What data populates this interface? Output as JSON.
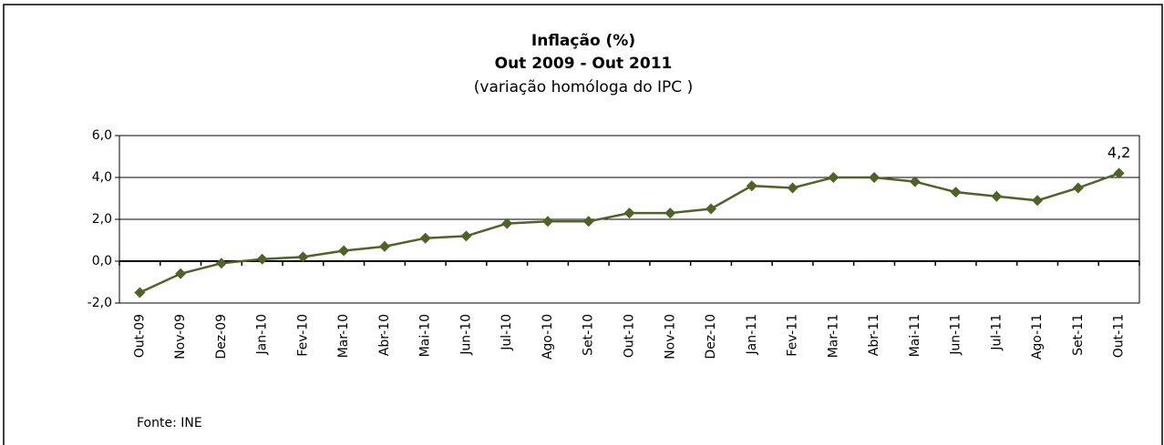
{
  "chart_data": {
    "type": "line",
    "title": "Inflação  (%)",
    "subtitle": "Out 2009 - Out 2011",
    "subtitle2": "(variação homóloga do IPC )",
    "source": "Fonte: INE",
    "categories": [
      "Out-09",
      "Nov-09",
      "Dez-09",
      "Jan-10",
      "Fev-10",
      "Mar-10",
      "Abr-10",
      "Mai-10",
      "Jun-10",
      "Jul-10",
      "Ago-10",
      "Set-10",
      "Out-10",
      "Nov-10",
      "Dez-10",
      "Jan-11",
      "Fev-11",
      "Mar-11",
      "Abr-11",
      "Mai-11",
      "Jun-11",
      "Jul-11",
      "Ago-11",
      "Set-11",
      "Out-11"
    ],
    "series": [
      {
        "color": "#4f6228",
        "values": [
          -1.5,
          -0.6,
          -0.1,
          0.1,
          0.2,
          0.5,
          0.7,
          1.1,
          1.2,
          1.8,
          1.9,
          1.9,
          2.3,
          2.3,
          2.5,
          3.6,
          3.5,
          4.0,
          4.0,
          3.8,
          3.3,
          3.1,
          2.9,
          3.5,
          4.2
        ],
        "value_labels": [
          null,
          null,
          null,
          null,
          null,
          null,
          null,
          null,
          null,
          null,
          null,
          null,
          null,
          null,
          null,
          null,
          null,
          null,
          null,
          null,
          null,
          null,
          null,
          null,
          "4,2"
        ]
      }
    ],
    "ylim": [
      -2,
      6
    ],
    "yticks": [
      {
        "value": -2,
        "label": "-2,0"
      },
      {
        "value": 0,
        "label": "0,0"
      },
      {
        "value": 2,
        "label": "2,0"
      },
      {
        "value": 4,
        "label": "4,0"
      },
      {
        "value": 6,
        "label": "6,0"
      }
    ],
    "grid": true
  }
}
